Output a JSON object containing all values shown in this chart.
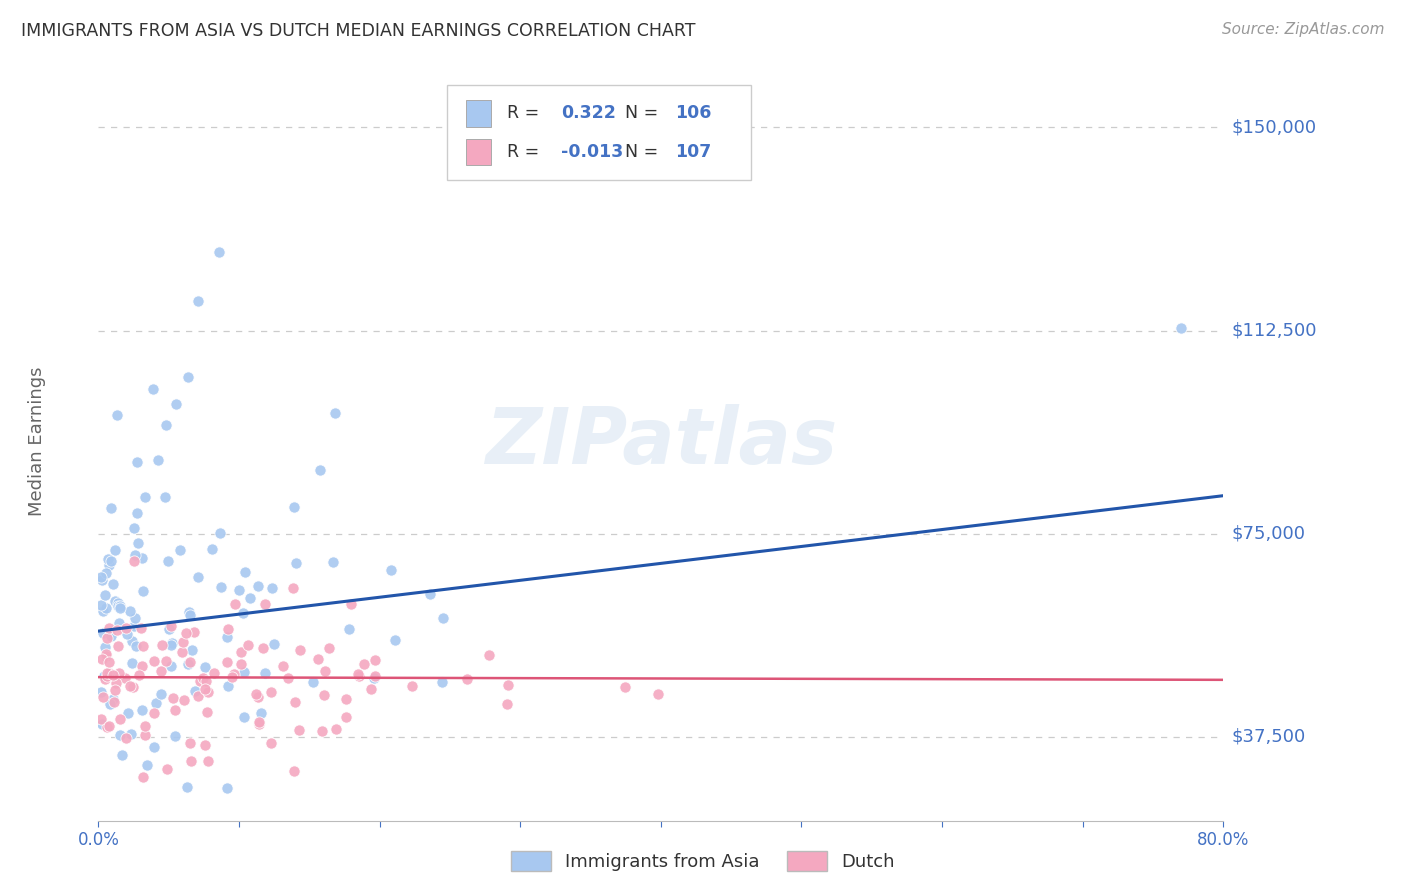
{
  "title": "IMMIGRANTS FROM ASIA VS DUTCH MEDIAN EARNINGS CORRELATION CHART",
  "source": "Source: ZipAtlas.com",
  "ylabel": "Median Earnings",
  "xlim": [
    0.0,
    0.8
  ],
  "ylim": [
    22000,
    162000
  ],
  "yticks": [
    37500,
    75000,
    112500,
    150000
  ],
  "ytick_labels": [
    "$37,500",
    "$75,000",
    "$112,500",
    "$150,000"
  ],
  "xticks": [
    0.0,
    0.1,
    0.2,
    0.3,
    0.4,
    0.5,
    0.6,
    0.7,
    0.8
  ],
  "xtick_labels": [
    "0.0%",
    "",
    "",
    "",
    "",
    "",
    "",
    "",
    "80.0%"
  ],
  "blue_color": "#A8C8F0",
  "pink_color": "#F4A8C0",
  "blue_line_color": "#2255AA",
  "pink_line_color": "#DD5577",
  "label1": "Immigrants from Asia",
  "label2": "Dutch",
  "watermark": "ZIPatlas",
  "title_color": "#333333",
  "axis_label_color": "#666666",
  "tick_color": "#4472C4",
  "grid_color": "#CCCCCC",
  "background_color": "#FFFFFF",
  "blue_line_x0": 0.0,
  "blue_line_y0": 57000,
  "blue_line_x1": 0.8,
  "blue_line_y1": 82000,
  "pink_line_x0": 0.0,
  "pink_line_y0": 48500,
  "pink_line_x1": 0.8,
  "pink_line_y1": 48000
}
